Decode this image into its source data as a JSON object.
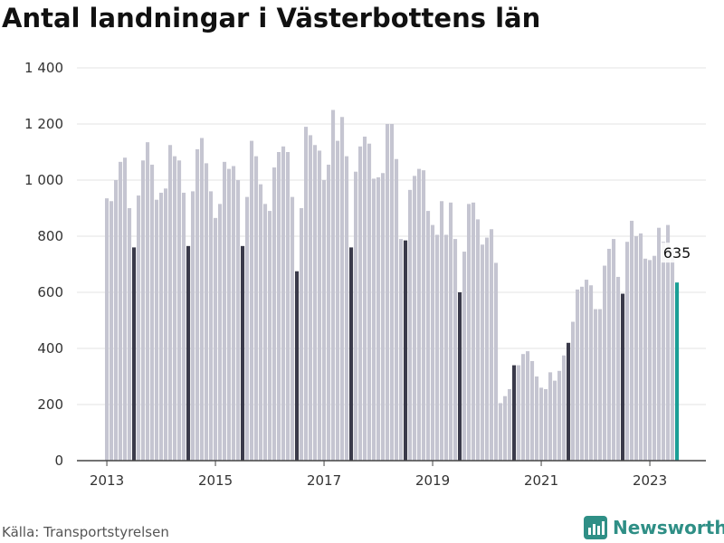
{
  "title": "Antal landningar i Västerbottens län",
  "source": "Källa: Transportstyrelsen",
  "brand": "Newsworthy",
  "colors": {
    "bar": "#c5c5d1",
    "highlight": "#3a3a4a",
    "latest": "#1a9e96",
    "grid": "#e3e3e3",
    "brand": "#2f8f86"
  },
  "chart_data": {
    "type": "bar",
    "title": "Antal landningar i Västerbottens län",
    "xlabel": "",
    "ylabel": "",
    "ylim": [
      0,
      1400
    ],
    "yticks": [
      0,
      200,
      400,
      600,
      800,
      1000,
      1200,
      1400
    ],
    "ytick_labels": [
      "0",
      "200",
      "400",
      "600",
      "800",
      "1 000",
      "1 200",
      "1 400"
    ],
    "xtick_labels": [
      "2013",
      "2015",
      "2017",
      "2019",
      "2021",
      "2023"
    ],
    "grid": true,
    "start": "2013-01",
    "highlight_month": 7,
    "values": [
      935,
      925,
      1000,
      1065,
      1080,
      900,
      760,
      945,
      1070,
      1135,
      1055,
      930,
      955,
      970,
      1125,
      1085,
      1070,
      955,
      765,
      960,
      1110,
      1150,
      1060,
      960,
      865,
      915,
      1065,
      1040,
      1050,
      1000,
      765,
      940,
      1140,
      1085,
      985,
      915,
      890,
      1045,
      1100,
      1120,
      1100,
      940,
      675,
      900,
      1190,
      1160,
      1125,
      1105,
      1000,
      1055,
      1250,
      1140,
      1225,
      1085,
      760,
      1030,
      1120,
      1155,
      1130,
      1005,
      1010,
      1025,
      1200,
      1200,
      1075,
      790,
      785,
      965,
      1015,
      1040,
      1035,
      890,
      840,
      805,
      925,
      805,
      920,
      790,
      600,
      745,
      915,
      920,
      860,
      770,
      795,
      825,
      705,
      205,
      230,
      255,
      340,
      340,
      380,
      390,
      355,
      300,
      260,
      255,
      315,
      285,
      320,
      375,
      420,
      495,
      610,
      620,
      645,
      625,
      540,
      540,
      695,
      755,
      790,
      655,
      595,
      780,
      855,
      800,
      810,
      720,
      715,
      730,
      830,
      780,
      840,
      755,
      635
    ],
    "data_labels": [
      {
        "index": 126,
        "text": "635"
      }
    ]
  }
}
